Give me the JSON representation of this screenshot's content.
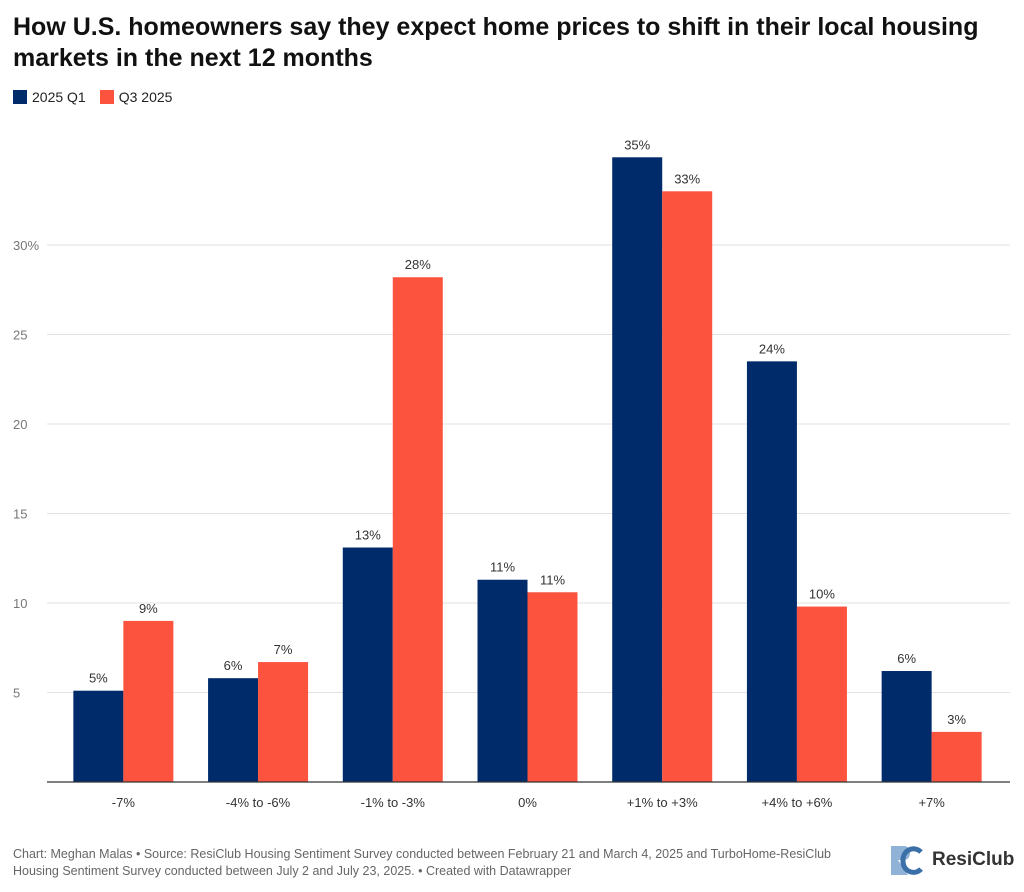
{
  "header": {
    "title": "How U.S. homeowners say they expect home prices to shift in their local housing markets in the next 12 months"
  },
  "legend": {
    "items": [
      {
        "label": "2025 Q1",
        "color": "#002b6b"
      },
      {
        "label": "Q3 2025",
        "color": "#fb533d"
      }
    ]
  },
  "footer": {
    "source": "Chart: Meghan Malas • Source: ResiClub Housing Sentiment Survey conducted between February 21 and March 4, 2025 and TurboHome-ResiClub Housing Sentiment Survey conducted between July 2 and July 23, 2025. • Created with Datawrapper",
    "logo_text": "ResiClub",
    "logo_icon": "resiclub-logo-icon"
  },
  "chart_data": {
    "type": "bar",
    "categories": [
      "-7%",
      "-4% to -6%",
      "-1% to -3%",
      "0%",
      "+1% to +3%",
      "+4% to +6%",
      "+7%"
    ],
    "series": [
      {
        "name": "2025 Q1",
        "color": "#002b6b",
        "values": [
          5.1,
          5.8,
          13.1,
          11.3,
          34.9,
          23.5,
          6.2
        ],
        "labels": [
          "5%",
          "6%",
          "13%",
          "11%",
          "35%",
          "24%",
          "6%"
        ]
      },
      {
        "name": "Q3 2025",
        "color": "#fb533d",
        "values": [
          9.0,
          6.7,
          28.2,
          10.6,
          33.0,
          9.8,
          2.8
        ],
        "labels": [
          "9%",
          "7%",
          "28%",
          "11%",
          "33%",
          "10%",
          "3%"
        ]
      }
    ],
    "yticks": [
      5,
      10,
      15,
      20,
      25,
      30
    ],
    "ytick_labels": [
      "5",
      "10",
      "15",
      "20",
      "25",
      "30%"
    ],
    "ylim": [
      0,
      36.5
    ],
    "grid": true,
    "legend_position": "top-left",
    "title": "How U.S. homeowners say they expect home prices to shift in their local housing markets in the next 12 months",
    "xlabel": "",
    "ylabel": ""
  }
}
